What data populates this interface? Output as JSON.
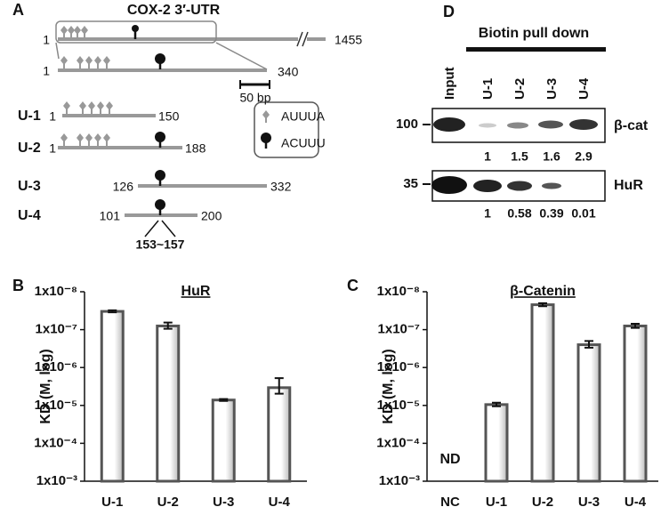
{
  "panel_labels": [
    "A",
    "B",
    "C",
    "D"
  ],
  "panel_a": {
    "title": "COX-2 3′-UTR",
    "full": {
      "start": "1",
      "end": "1455"
    },
    "zoom": {
      "start": "1",
      "end": "340"
    },
    "scale": "50 bp",
    "legend": [
      "AUUUA",
      "ACUUU"
    ],
    "constructs": [
      {
        "name": "U-1",
        "start": "1",
        "end": "150"
      },
      {
        "name": "U-2",
        "start": "1",
        "end": "188"
      },
      {
        "name": "U-3",
        "start": "126",
        "end": "332"
      },
      {
        "name": "U-4",
        "start": "101",
        "end": "200"
      }
    ],
    "site": "153~157"
  },
  "panel_d": {
    "header": "Biotin pull down",
    "lanes": [
      "Input",
      "U-1",
      "U-2",
      "U-3",
      "U-4"
    ],
    "blots": [
      {
        "marker": 100,
        "name": "β-cat",
        "values": [
          1,
          1.5,
          1.6,
          2.9
        ]
      },
      {
        "marker": 35,
        "name": "HuR",
        "values": [
          1,
          0.58,
          0.39,
          0.01
        ]
      }
    ]
  },
  "chart_data": [
    {
      "type": "bar",
      "title": "HuR",
      "ylabel": "KD (M, log)",
      "log_scale": true,
      "categories": [
        "U-1",
        "U-2",
        "U-3",
        "U-4"
      ],
      "values": [
        3.3e-08,
        8e-08,
        7.2e-06,
        3.4e-06
      ],
      "errors": [
        2e-09,
        1.5e-08,
        4e-07,
        1.5e-06
      ],
      "ylim": [
        0.001,
        1e-08
      ],
      "yticks": [
        {
          "value": 1e-08,
          "label": "1x10⁻⁸"
        },
        {
          "value": 1e-07,
          "label": "1x10⁻⁷"
        },
        {
          "value": 1e-06,
          "label": "1x10⁻⁶"
        },
        {
          "value": 1e-05,
          "label": "1x10⁻⁵"
        },
        {
          "value": 0.0001,
          "label": "1x10⁻⁴"
        },
        {
          "value": 0.001,
          "label": "1x10⁻³"
        }
      ],
      "color": "#555555"
    },
    {
      "type": "bar",
      "title": "β-Catenin",
      "ylabel": "KD (M, log)",
      "log_scale": true,
      "categories": [
        "NC",
        "U-1",
        "U-2",
        "U-3",
        "U-4"
      ],
      "values": [
        null,
        9.5e-06,
        2.2e-08,
        2.5e-07,
        8e-08
      ],
      "errors": [
        null,
        1e-06,
        2e-09,
        5e-08,
        1e-08
      ],
      "annotations": [
        {
          "category": 0,
          "text": "ND"
        }
      ],
      "ylim": [
        0.001,
        1e-08
      ],
      "yticks": [
        {
          "value": 1e-08,
          "label": "1x10⁻⁸"
        },
        {
          "value": 1e-07,
          "label": "1x10⁻⁷"
        },
        {
          "value": 1e-06,
          "label": "1x10⁻⁶"
        },
        {
          "value": 1e-05,
          "label": "1x10⁻⁵"
        },
        {
          "value": 0.0001,
          "label": "1x10⁻⁴"
        },
        {
          "value": 0.001,
          "label": "1x10⁻³"
        }
      ],
      "color": "#555555"
    }
  ]
}
